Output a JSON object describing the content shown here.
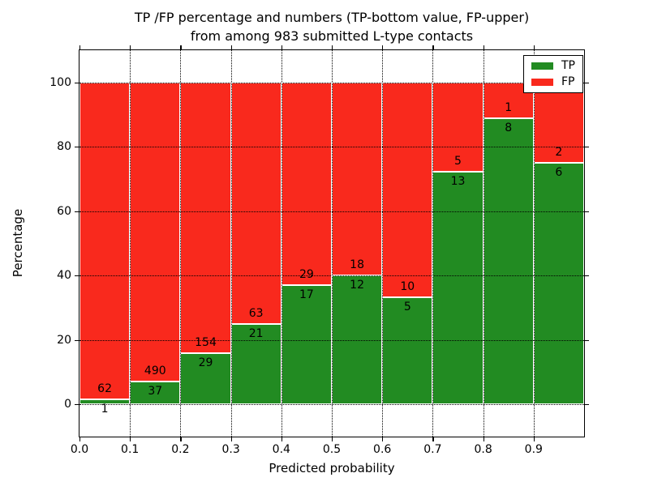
{
  "title": {
    "line1": "TP /FP percentage and numbers (TP-bottom value, FP-upper)",
    "line2": "from among 983 submitted L-type contacts"
  },
  "axes": {
    "ylabel": "Percentage",
    "xlabel": "Predicted probability",
    "yticks": [
      0,
      20,
      40,
      60,
      80,
      100
    ],
    "xticks": [
      "0.0",
      "0.1",
      "0.2",
      "0.3",
      "0.4",
      "0.5",
      "0.6",
      "0.7",
      "0.8",
      "0.9"
    ],
    "ylim": [
      -10,
      110
    ],
    "xlim": [
      0,
      1
    ]
  },
  "legend": {
    "items": [
      {
        "label": "TP",
        "color": "#228b22"
      },
      {
        "label": "FP",
        "color": "#f9291d"
      }
    ],
    "position": "upper right"
  },
  "colors": {
    "tp": "#228b22",
    "fp": "#f9291d",
    "grid": "#000000",
    "bar_edge": "#ffffff",
    "background": "#ffffff",
    "text": "#000000"
  },
  "chart_data": {
    "type": "bar",
    "stacked": true,
    "title": "TP /FP percentage and numbers (TP-bottom value, FP-upper) from among 983 submitted L-type contacts",
    "xlabel": "Predicted probability",
    "ylabel": "Percentage",
    "total_contacts": 983,
    "bins": [
      [
        0.0,
        0.1
      ],
      [
        0.1,
        0.2
      ],
      [
        0.2,
        0.3
      ],
      [
        0.3,
        0.4
      ],
      [
        0.4,
        0.5
      ],
      [
        0.5,
        0.6
      ],
      [
        0.6,
        0.7
      ],
      [
        0.7,
        0.8
      ],
      [
        0.8,
        0.9
      ],
      [
        0.9,
        1.0
      ]
    ],
    "categories": [
      "0.0-0.1",
      "0.1-0.2",
      "0.2-0.3",
      "0.3-0.4",
      "0.4-0.5",
      "0.5-0.6",
      "0.6-0.7",
      "0.7-0.8",
      "0.8-0.9",
      "0.9-1.0"
    ],
    "series": [
      {
        "name": "TP",
        "color": "#228b22",
        "counts": [
          1,
          37,
          29,
          21,
          17,
          12,
          5,
          13,
          8,
          6
        ],
        "pct": [
          1.6,
          7.0,
          15.8,
          25.0,
          37.0,
          40.0,
          33.3,
          72.2,
          88.9,
          75.0
        ]
      },
      {
        "name": "FP",
        "color": "#f9291d",
        "counts": [
          62,
          490,
          154,
          63,
          29,
          18,
          10,
          5,
          1,
          2
        ],
        "pct": [
          98.4,
          93.0,
          84.2,
          75.0,
          63.0,
          60.0,
          66.7,
          27.8,
          11.1,
          25.0
        ]
      }
    ],
    "annotation_scheme": "FP count printed above TP/FP boundary, TP count printed below boundary",
    "ylim": [
      -10,
      110
    ],
    "grid": "dotted black, on top of bars",
    "legend_position": "upper right"
  }
}
